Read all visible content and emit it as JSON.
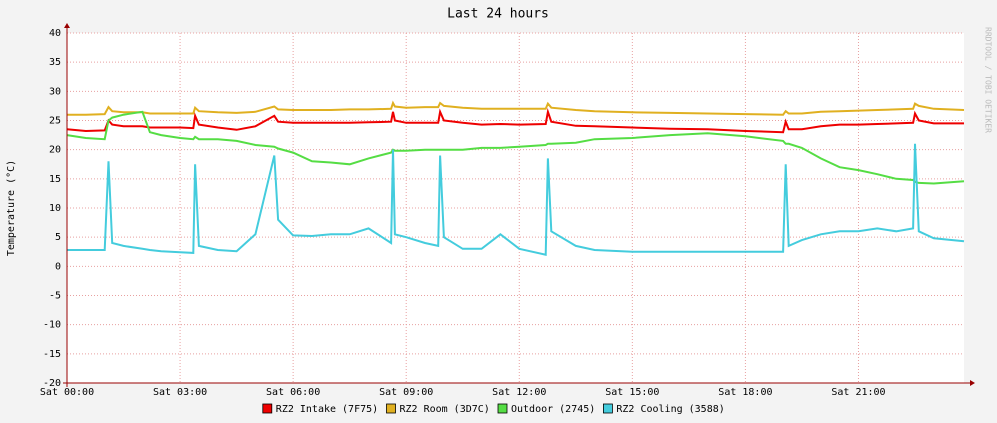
{
  "chart_data": {
    "type": "line",
    "title": "Last 24 hours",
    "ylabel": "Temperature (°C)",
    "watermark": "RRDTOOL / TOBI OETIKER",
    "x": [
      0,
      0.5,
      1.0,
      1.1,
      1.2,
      1.5,
      2.0,
      2.2,
      2.5,
      3.0,
      3.35,
      3.4,
      3.5,
      4.0,
      4.5,
      5.0,
      5.5,
      5.6,
      6.0,
      6.5,
      7.0,
      7.5,
      8.0,
      8.6,
      8.65,
      8.7,
      9.0,
      9.5,
      9.85,
      9.9,
      10.0,
      10.5,
      11.0,
      11.5,
      12.0,
      12.7,
      12.76,
      12.85,
      13.5,
      14.0,
      15.0,
      16.0,
      17.0,
      18.0,
      19.0,
      19.07,
      19.15,
      19.5,
      20.0,
      20.5,
      21.0,
      21.5,
      22.0,
      22.45,
      22.5,
      22.6,
      23.0,
      23.8
    ],
    "series": [
      {
        "name": "RZ2 Intake (7F75)",
        "color": "#ee0000",
        "values": [
          23.5,
          23.2,
          23.3,
          25,
          24.3,
          24,
          24,
          23.8,
          23.8,
          23.8,
          23.7,
          25.8,
          24.3,
          23.8,
          23.4,
          24,
          25.8,
          24.8,
          24.6,
          24.6,
          24.6,
          24.6,
          24.7,
          24.8,
          26.5,
          25,
          24.6,
          24.6,
          24.6,
          26.5,
          25,
          24.6,
          24.3,
          24.4,
          24.3,
          24.4,
          26.5,
          24.8,
          24.1,
          24,
          23.8,
          23.6,
          23.5,
          23.2,
          23,
          24.8,
          23.5,
          23.5,
          24,
          24.3,
          24.3,
          24.4,
          24.5,
          24.6,
          26.2,
          25,
          24.5,
          24.5
        ]
      },
      {
        "name": "RZ2 Room (3D7C)",
        "color": "#e0b020",
        "values": [
          26,
          26,
          26.1,
          27.3,
          26.6,
          26.4,
          26.4,
          26.2,
          26.2,
          26.2,
          26.2,
          27.2,
          26.6,
          26.4,
          26.3,
          26.5,
          27.4,
          26.9,
          26.8,
          26.8,
          26.8,
          26.9,
          26.9,
          27,
          28,
          27.4,
          27.2,
          27.3,
          27.3,
          28,
          27.5,
          27.2,
          27,
          27,
          27,
          27,
          27.9,
          27.2,
          26.8,
          26.6,
          26.4,
          26.3,
          26.2,
          26.1,
          26,
          26.6,
          26.2,
          26.2,
          26.5,
          26.6,
          26.7,
          26.8,
          26.9,
          27,
          27.9,
          27.5,
          27,
          26.8
        ]
      },
      {
        "name": "Outdoor (2745)",
        "color": "#55dd44",
        "values": [
          22.5,
          22,
          21.8,
          25,
          25.5,
          26,
          26.5,
          23,
          22.5,
          22,
          21.8,
          22.2,
          21.8,
          21.8,
          21.5,
          20.8,
          20.5,
          20.2,
          19.5,
          18,
          17.8,
          17.5,
          18.5,
          19.5,
          20,
          19.8,
          19.8,
          20,
          20,
          20,
          20,
          20,
          20.3,
          20.3,
          20.5,
          20.8,
          21,
          21,
          21.2,
          21.8,
          22,
          22.5,
          22.8,
          22.3,
          21.5,
          21,
          21,
          20.3,
          18.5,
          17,
          16.5,
          15.8,
          15,
          14.8,
          14.5,
          14.3,
          14.2,
          14.6
        ]
      },
      {
        "name": "RZ2 Cooling (3588)",
        "color": "#44ccdd",
        "values": [
          2.8,
          2.8,
          2.8,
          18,
          4,
          3.5,
          3,
          2.8,
          2.6,
          2.4,
          2.3,
          17.5,
          3.5,
          2.8,
          2.6,
          5.5,
          19,
          8,
          5.3,
          5.2,
          5.5,
          5.5,
          6.5,
          4,
          20,
          5.5,
          5,
          4,
          3.5,
          19,
          5,
          3,
          3,
          5.5,
          3,
          2,
          18.5,
          6,
          3.5,
          2.8,
          2.5,
          2.5,
          2.5,
          2.5,
          2.5,
          17.5,
          3.5,
          4.5,
          5.5,
          6,
          6,
          6.5,
          6,
          6.5,
          21,
          6,
          4.8,
          4.3
        ]
      }
    ],
    "xlim": [
      0,
      23.8
    ],
    "ylim": [
      -20,
      40
    ],
    "yticks": [
      -20,
      -15,
      -10,
      -5,
      0,
      5,
      10,
      15,
      20,
      25,
      30,
      35,
      40
    ],
    "xticks": [
      {
        "value": 0,
        "label": "Sat 00:00"
      },
      {
        "value": 3,
        "label": "Sat 03:00"
      },
      {
        "value": 6,
        "label": "Sat 06:00"
      },
      {
        "value": 9,
        "label": "Sat 09:00"
      },
      {
        "value": 12,
        "label": "Sat 12:00"
      },
      {
        "value": 15,
        "label": "Sat 15:00"
      },
      {
        "value": 18,
        "label": "Sat 18:00"
      },
      {
        "value": 21,
        "label": "Sat 21:00"
      }
    ],
    "grid": true
  }
}
